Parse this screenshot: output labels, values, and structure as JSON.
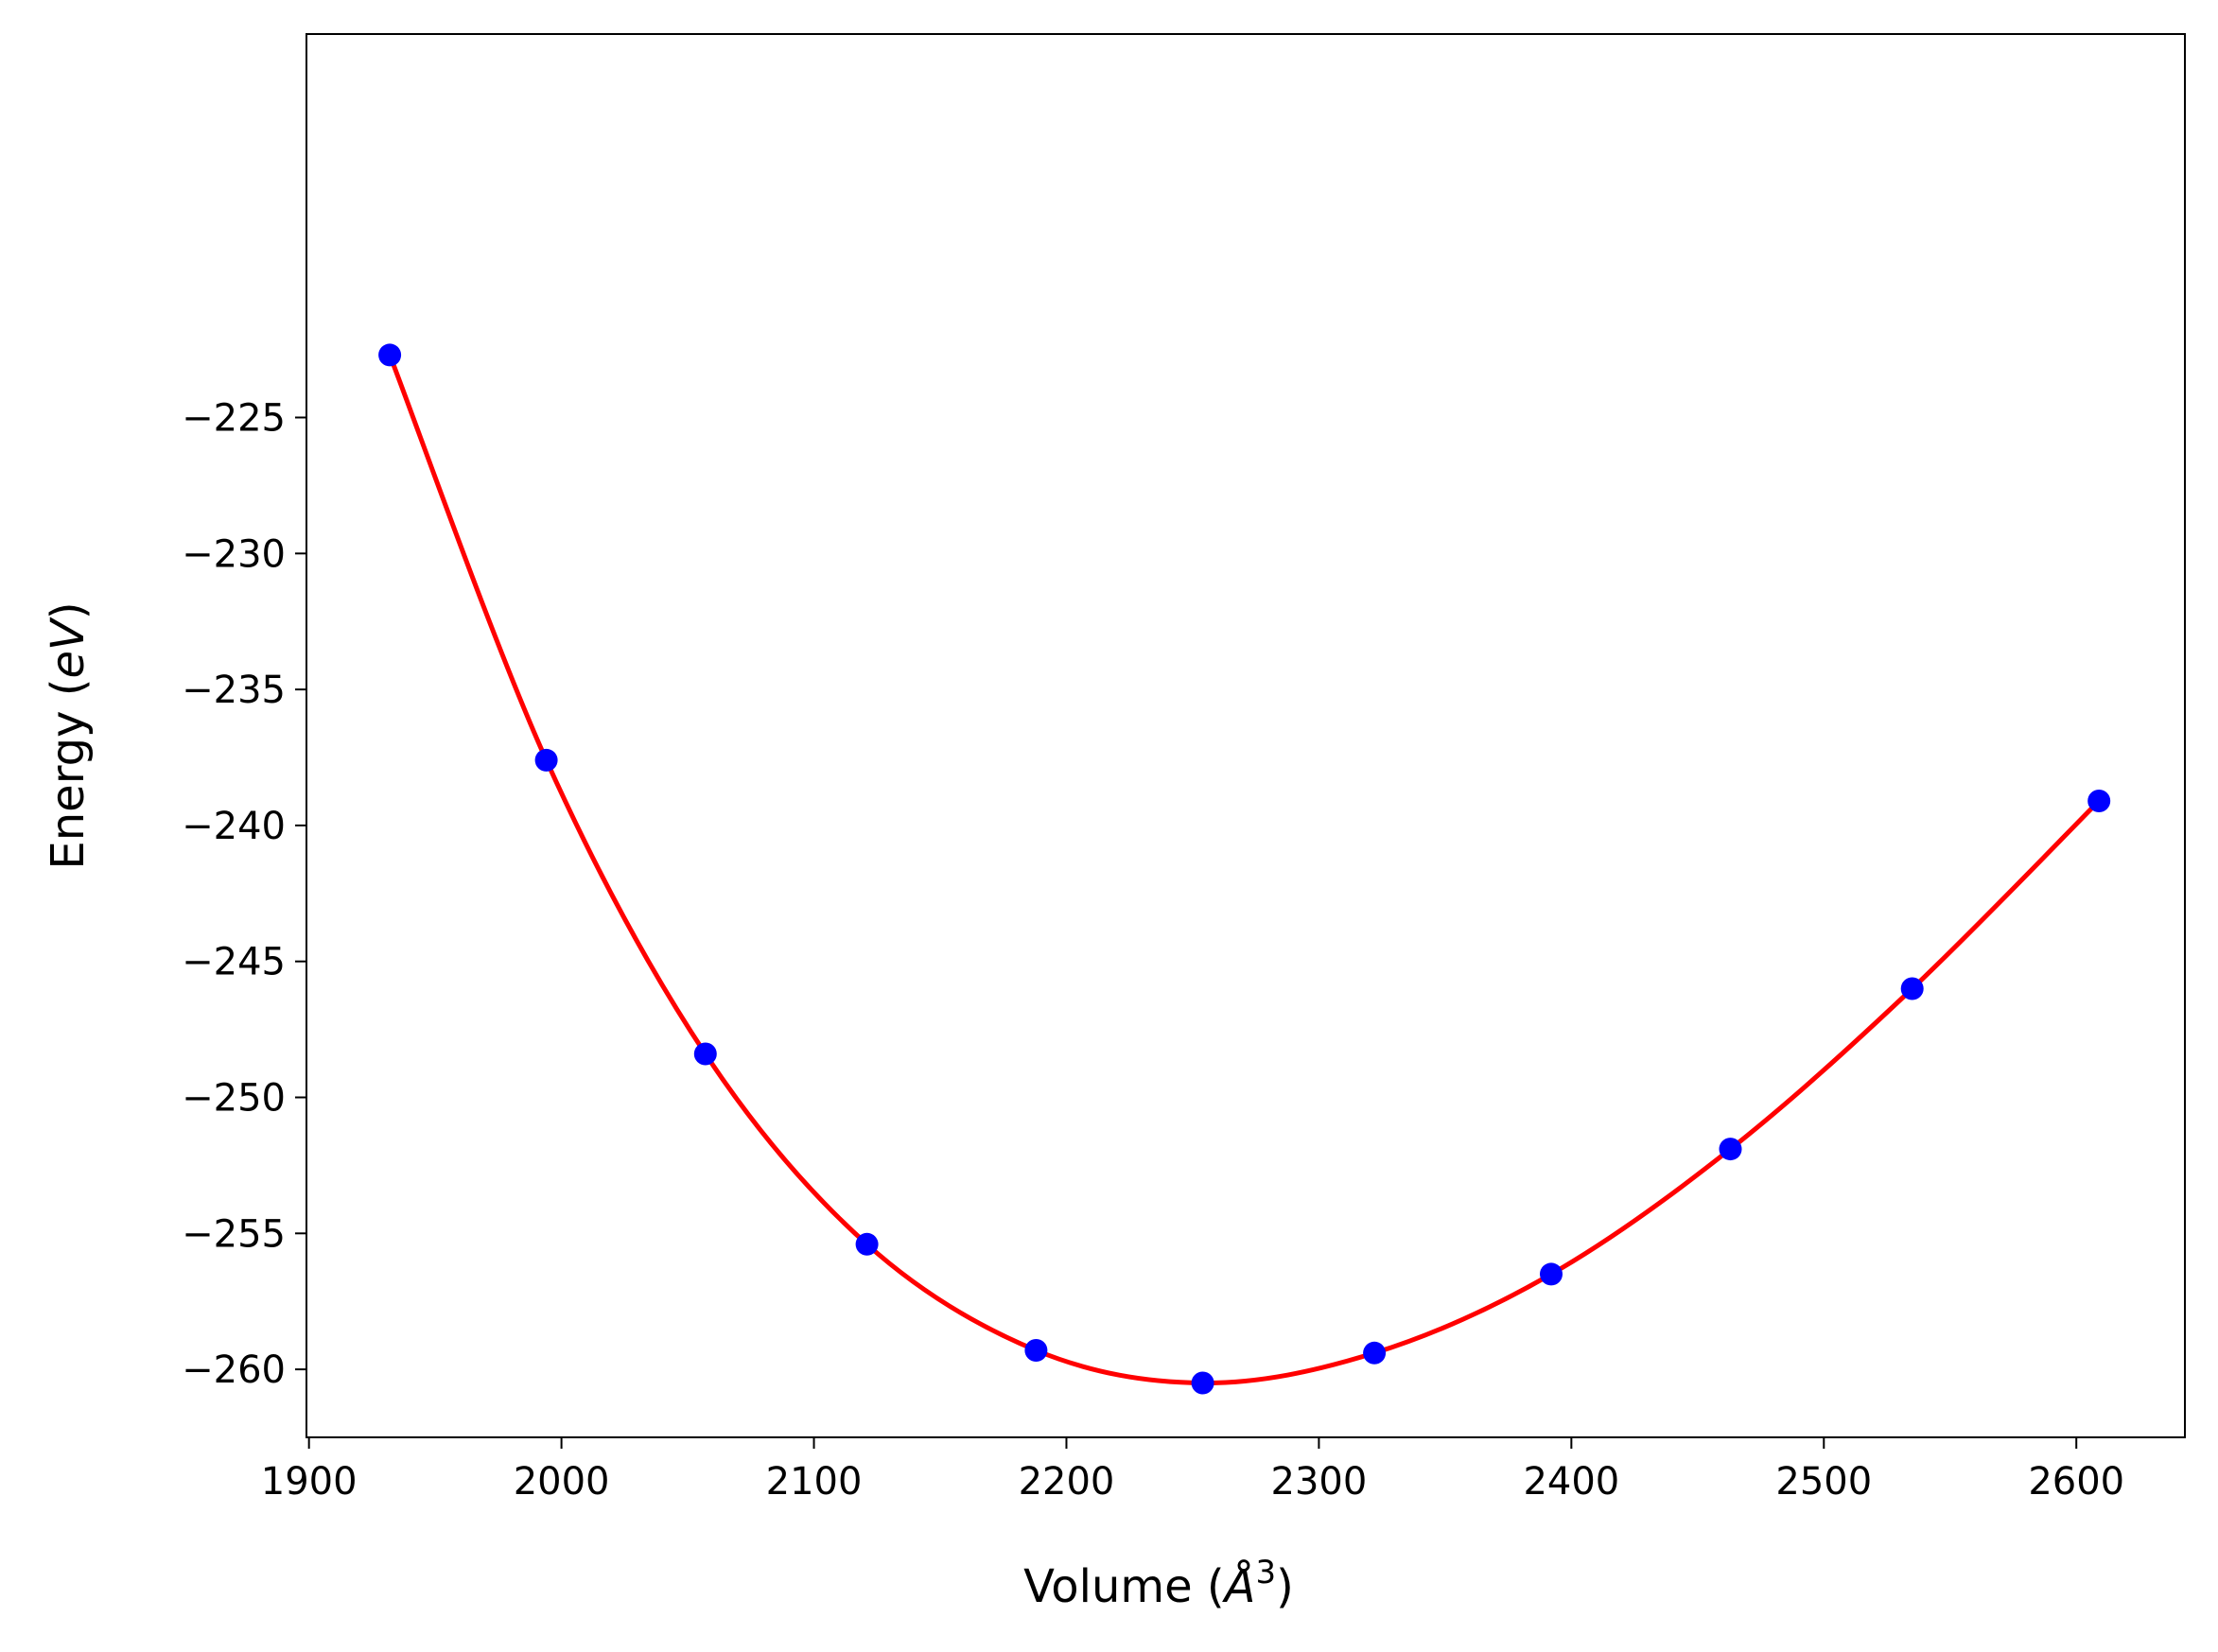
{
  "chart_data": {
    "type": "scatter",
    "xlabel_prefix": "Volume (",
    "xlabel_symbol": "Å",
    "xlabel_exponent": "3",
    "xlabel_suffix": ")",
    "ylabel_prefix": "Energy (",
    "ylabel_symbol": "eV",
    "ylabel_suffix": ")",
    "xlim": [
      1899,
      2643
    ],
    "ylim": [
      -262.5,
      -210.9
    ],
    "xticks": [
      1900,
      2000,
      2100,
      2200,
      2300,
      2400,
      2500,
      2600
    ],
    "yticks": [
      -225,
      -230,
      -235,
      -240,
      -245,
      -250,
      -255,
      -260
    ],
    "xtick_labels": [
      "1900",
      "2000",
      "2100",
      "2200",
      "2300",
      "2400",
      "2500",
      "2600"
    ],
    "ytick_labels": [
      "−225",
      "−230",
      "−235",
      "−240",
      "−245",
      "−250",
      "−255",
      "−260"
    ],
    "grid": false,
    "series": [
      {
        "kind": "points",
        "color": "#0000ff",
        "x": [
          1932,
          1994,
          2057,
          2121,
          2188,
          2254,
          2322,
          2392,
          2463,
          2535,
          2609
        ],
        "y": [
          -222.7,
          -237.6,
          -248.4,
          -255.4,
          -259.3,
          -260.5,
          -259.4,
          -256.5,
          -251.9,
          -246.0,
          -239.1
        ]
      },
      {
        "kind": "fit-line",
        "color": "#ff0000"
      }
    ]
  }
}
